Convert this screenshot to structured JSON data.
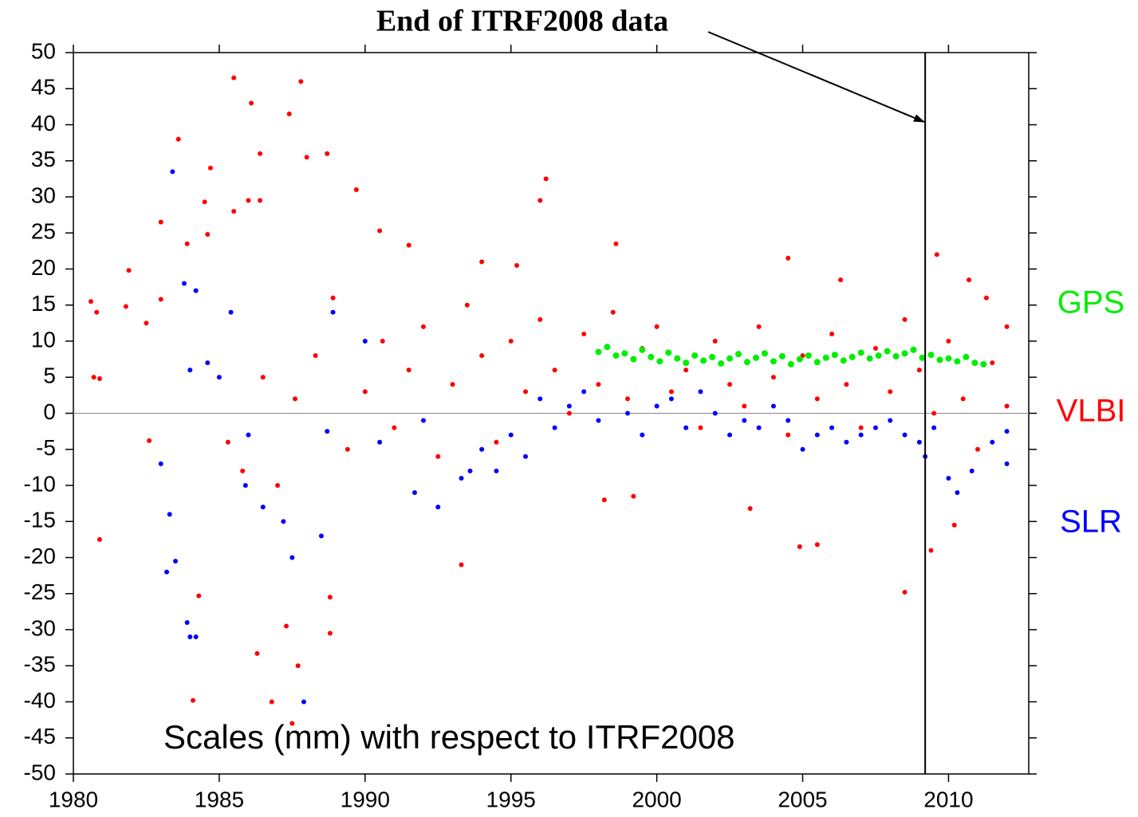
{
  "chart_data": {
    "type": "scatter",
    "title": "End of ITRF2008 data",
    "annotation": "Scales (mm) with respect to ITRF2008",
    "xlim": [
      1980,
      2012.75
    ],
    "ylim": [
      -50,
      50
    ],
    "xticks": [
      1980,
      1985,
      1990,
      1995,
      2000,
      2005,
      2010
    ],
    "yticks": [
      -50,
      -45,
      -40,
      -35,
      -30,
      -25,
      -20,
      -15,
      -10,
      -5,
      0,
      5,
      10,
      15,
      20,
      25,
      30,
      35,
      40,
      45,
      50
    ],
    "hline": 0,
    "vline": 2009.2,
    "legend": "right",
    "series": [
      {
        "name": "GPS",
        "color": "#00ee00",
        "x": [
          1998.0,
          1998.3,
          1998.6,
          1998.9,
          1999.2,
          1999.5,
          1999.8,
          2000.1,
          2000.4,
          2000.7,
          2001.0,
          2001.3,
          2001.6,
          2001.9,
          2002.2,
          2002.5,
          2002.8,
          2003.1,
          2003.4,
          2003.7,
          2004.0,
          2004.3,
          2004.6,
          2004.9,
          2005.2,
          2005.5,
          2005.8,
          2006.1,
          2006.4,
          2006.7,
          2007.0,
          2007.3,
          2007.6,
          2007.9,
          2008.2,
          2008.5,
          2008.8,
          2009.1,
          2009.4,
          2009.7,
          2010.0,
          2010.3,
          2010.6,
          2010.9,
          2011.2
        ],
        "values": [
          8.5,
          9.2,
          8,
          8.3,
          7.5,
          8.8,
          7.8,
          7.2,
          8.4,
          7.6,
          7,
          8,
          7.3,
          7.8,
          6.9,
          7.6,
          8.2,
          7.1,
          7.7,
          8.3,
          7.2,
          7.9,
          6.8,
          7.5,
          8,
          7.1,
          7.7,
          8.1,
          7.3,
          7.8,
          8.4,
          7.6,
          8,
          8.6,
          7.9,
          8.3,
          8.8,
          7.7,
          8.1,
          7.4,
          7.6,
          7.2,
          7.8,
          7,
          6.8
        ]
      },
      {
        "name": "VLBI",
        "color": "#ff0000",
        "x": [
          1980.6,
          1980.8,
          1980.7,
          1980.9,
          1980.9,
          1981.9,
          1981.8,
          1982.5,
          1982.6,
          1983,
          1983,
          1983.6,
          1983.9,
          1984.1,
          1984.3,
          1984.5,
          1984.7,
          1984.6,
          1985.5,
          1985.5,
          1986.1,
          1986.4,
          1986,
          1986.4,
          1986.3,
          1986.8,
          1987.4,
          1987.8,
          1988,
          1987.5,
          1987.3,
          1987.7,
          1988.7,
          1988.8,
          1988.8,
          1989.7,
          1990.5,
          1991.5,
          1993.3,
          1994,
          1995.2,
          1996,
          1996.2,
          1998.6,
          2004.5,
          2006.3,
          2008.5,
          2009.4,
          2009.6,
          2010.7,
          2011.3,
          2004.9,
          2005.5,
          1985.3,
          1985.8,
          1986.5,
          1987,
          1987.6,
          1988.3,
          1988.9,
          1989.4,
          1990,
          1990.6,
          1991,
          1991.5,
          1992,
          1992.5,
          1993,
          1993.5,
          1994,
          1994.5,
          1995,
          1995.5,
          1996,
          1996.5,
          1997,
          1997.5,
          1998,
          1998.5,
          1999,
          1999.5,
          2000,
          2000.5,
          2001,
          2001.5,
          2002,
          2002.5,
          2003,
          2003.5,
          2004,
          2004.5,
          2005,
          2005.5,
          2006,
          2006.5,
          2007,
          2007.5,
          2008,
          2008.5,
          2009,
          2009.5,
          2010,
          2010.5,
          2011,
          2011.5,
          2012,
          2012,
          1999.2,
          1998.2,
          2003.2,
          2010.2
        ],
        "values": [
          15.5,
          14,
          5,
          4.8,
          -17.5,
          19.8,
          14.8,
          12.5,
          -3.8,
          26.5,
          15.8,
          38,
          23.5,
          -39.8,
          -25.3,
          29.3,
          34,
          24.8,
          46.5,
          28,
          43,
          36,
          29.5,
          29.5,
          -33.3,
          -40,
          41.5,
          46,
          35.5,
          -43,
          -29.5,
          -35,
          36,
          -25.5,
          -30.5,
          31,
          25.3,
          23.3,
          -21,
          21,
          20.5,
          29.5,
          32.5,
          23.5,
          21.5,
          18.5,
          -24.8,
          -19,
          22,
          18.5,
          16,
          -18.5,
          -18.2,
          -4,
          -8,
          5,
          -10,
          2,
          8,
          16,
          -5,
          3,
          10,
          -2,
          6,
          12,
          -6,
          4,
          15,
          8,
          -4,
          10,
          3,
          13,
          6,
          0,
          11,
          4,
          14,
          2,
          9,
          12,
          3,
          6,
          -2,
          10,
          4,
          1,
          12,
          5,
          -3,
          8,
          2,
          11,
          4,
          -2,
          9,
          3,
          13,
          6,
          0,
          10,
          2,
          -5,
          7,
          12,
          1,
          -11.5,
          -12,
          -13.2,
          -15.5
        ]
      },
      {
        "name": "SLR",
        "color": "#0000ff",
        "x": [
          1983.4,
          1983,
          1983.3,
          1983.2,
          1983.5,
          1983.9,
          1984,
          1984.2,
          1983.8,
          1984.2,
          1984,
          1985.4,
          1984.6,
          1987.9,
          1987.5,
          1988.5,
          1988.7,
          1988.9,
          1990,
          1985.9,
          1986.5,
          1987.2,
          1991.7,
          1992.5,
          1993.3,
          1993.6,
          1994.5,
          1995,
          1996,
          1997.5,
          1999,
          2000.5,
          2001,
          2002,
          2003,
          2004,
          2005,
          2006,
          2007,
          2008,
          2009,
          2009.5,
          2010,
          2010.3,
          2010.8,
          2011.5,
          2012,
          2012,
          1994,
          1995.5,
          1996.5,
          1997,
          1998,
          1999.5,
          2000,
          2001.5,
          2002.5,
          2003.5,
          2004.5,
          2005.5,
          2006.5,
          2007.5,
          2008.5,
          2009.2,
          1985,
          1986,
          1990.5,
          1992
        ],
        "values": [
          33.5,
          -7,
          -14,
          -22,
          -20.5,
          -29,
          -31,
          -31,
          18,
          17,
          6,
          14,
          7,
          -40,
          -20,
          -17,
          -2.5,
          14,
          10,
          -10,
          -13,
          -15,
          -11,
          -13,
          -9,
          -8,
          -8,
          -3,
          2,
          3,
          0,
          2,
          -2,
          0,
          -1,
          1,
          -5,
          -2,
          -3,
          -1,
          -4,
          -2,
          -9,
          -11,
          -8,
          -4,
          -7,
          -2.5,
          -5,
          -6,
          -2,
          1,
          -1,
          -3,
          1,
          3,
          -3,
          -2,
          -1,
          -3,
          -4,
          -2,
          -3,
          -6,
          5,
          -3,
          -4,
          -1
        ]
      }
    ]
  }
}
